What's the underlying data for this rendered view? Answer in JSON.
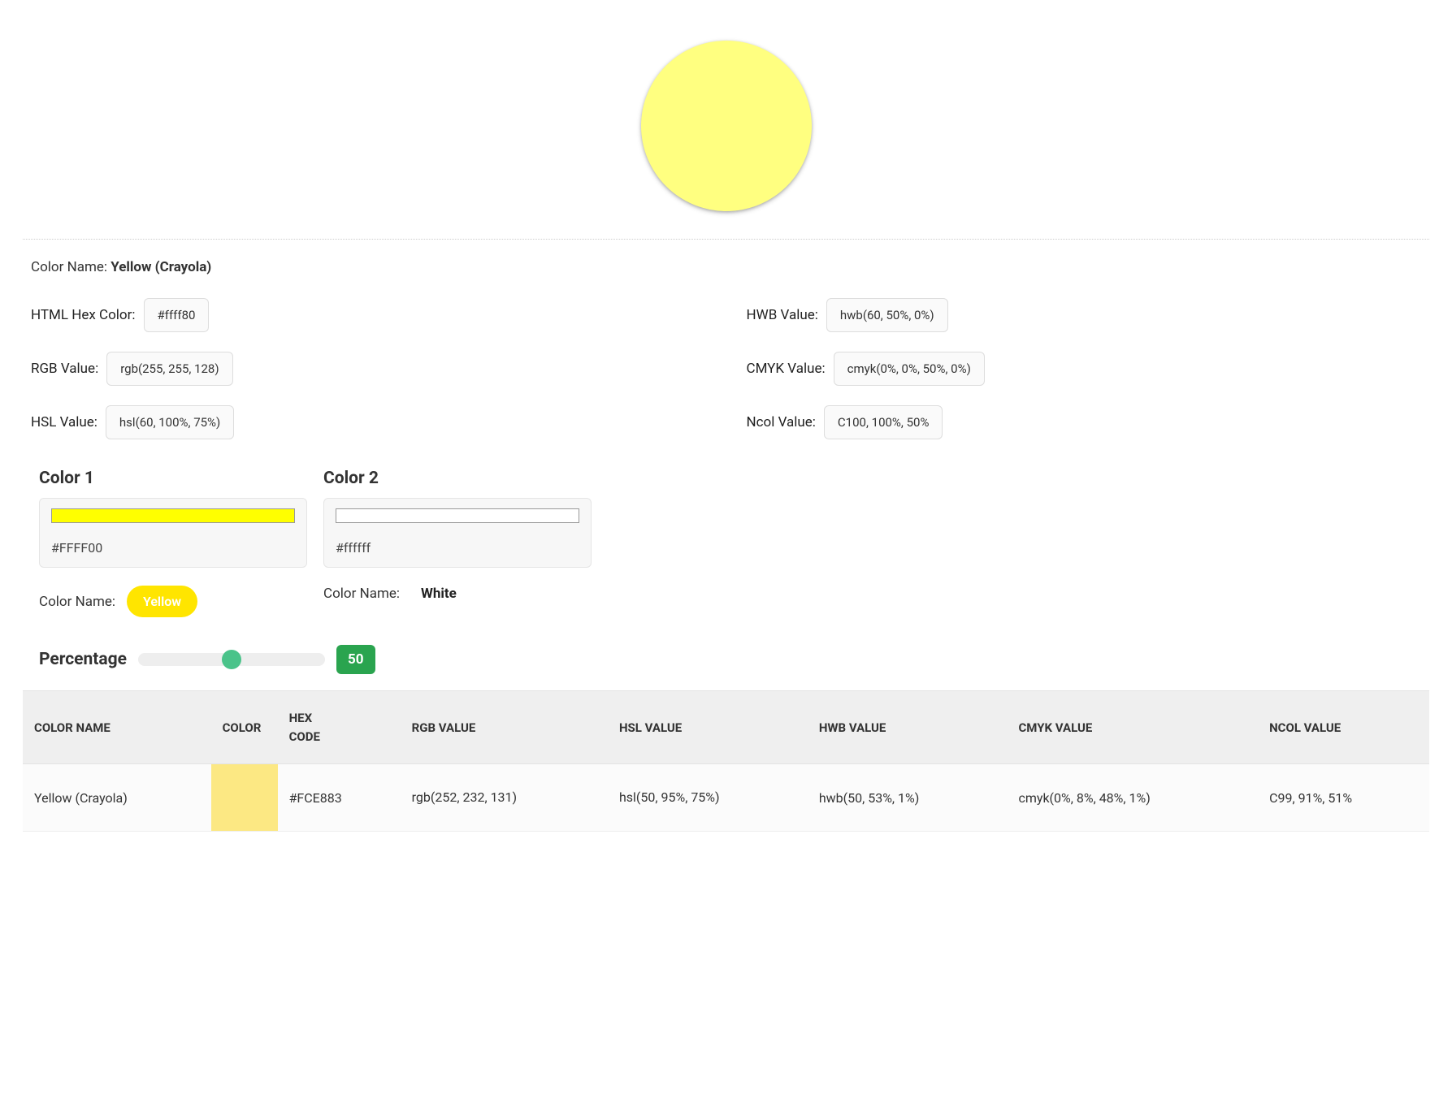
{
  "swatch": {
    "color": "#ffff80",
    "name_label": "Color Name:",
    "name_value": "Yellow (Crayola)"
  },
  "values": {
    "hex": {
      "label": "HTML Hex Color:",
      "value": "#ffff80"
    },
    "rgb": {
      "label": "RGB Value:",
      "value": "rgb(255, 255, 128)"
    },
    "hsl": {
      "label": "HSL Value:",
      "value": "hsl(60, 100%, 75%)"
    },
    "hwb": {
      "label": "HWB Value:",
      "value": "hwb(60, 50%, 0%)"
    },
    "cmyk": {
      "label": "CMYK Value:",
      "value": "cmyk(0%, 0%, 50%, 0%)"
    },
    "ncol": {
      "label": "Ncol Value:",
      "value": "C100, 100%, 50%"
    }
  },
  "mixer": {
    "col1": {
      "title": "Color 1",
      "strip_color": "#ffff00",
      "hex": "#FFFF00",
      "name_label": "Color Name:",
      "name": "Yellow",
      "name_style": "pill",
      "pill_bg": "#ffe500",
      "pill_fg": "#ffffff"
    },
    "col2": {
      "title": "Color 2",
      "strip_color": "#ffffff",
      "hex": "#ffffff",
      "name_label": "Color Name:",
      "name": "White",
      "name_style": "plain"
    }
  },
  "percentage": {
    "label": "Percentage",
    "value_display": "50",
    "slider_percent": 50,
    "thumb_color": "#4ac38a",
    "badge_bg": "#2aa44f"
  },
  "table": {
    "headers": {
      "name": "COLOR NAME",
      "color": "COLOR",
      "hex1": "HEX",
      "hex2": "CODE",
      "rgb": "RGB VALUE",
      "hsl": "HSL VALUE",
      "hwb": "HWB VALUE",
      "cmyk": "CMYK VALUE",
      "ncol": "NCOL VALUE"
    },
    "row": {
      "name": "Yellow (Crayola)",
      "swatch": "#fce883",
      "hex": "#FCE883",
      "rgb": "rgb(252, 232, 131)",
      "hsl": "hsl(50, 95%, 75%)",
      "hwb": "hwb(50, 53%, 1%)",
      "cmyk": "cmyk(0%, 8%, 48%, 1%)",
      "ncol": "C99, 91%, 51%"
    }
  }
}
